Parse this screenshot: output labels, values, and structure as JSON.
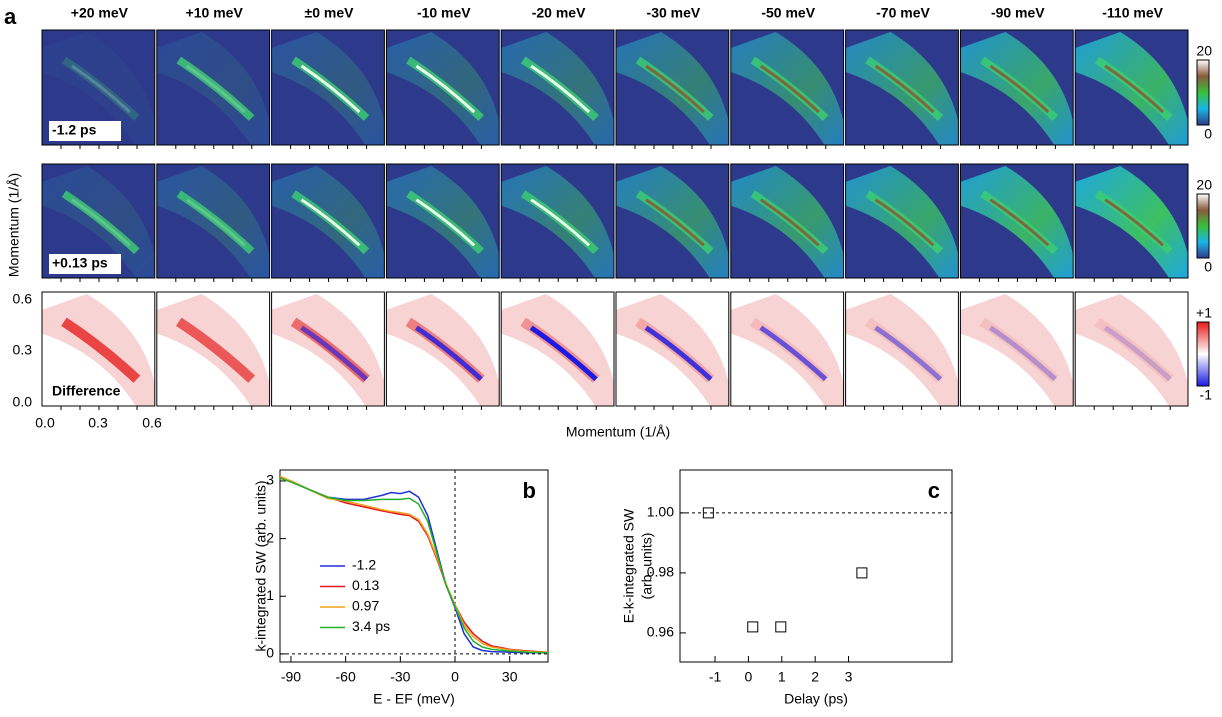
{
  "panel_a": {
    "label": "a",
    "columns": [
      "+20 meV",
      "+10 meV",
      "±0 meV",
      "-10 meV",
      "-20 meV",
      "-30 meV",
      "-50 meV",
      "-70 meV",
      "-90 meV",
      "-110 meV"
    ],
    "rows": [
      {
        "label": "-1.2 ps",
        "colorbar": [
          "20",
          "0"
        ]
      },
      {
        "label": "+0.13 ps",
        "colorbar": [
          "20",
          "0"
        ]
      },
      {
        "label": "Difference",
        "colorbar": [
          "+1",
          "-1"
        ]
      }
    ],
    "ylabel": "Momentum (1/Å)",
    "xlabel": "Momentum (1/Å)",
    "yticks": [
      "0.6",
      "0.3",
      "0.0"
    ],
    "xticks": [
      "0.0",
      "0.3",
      "0.6"
    ]
  },
  "chart_data": [
    {
      "type": "line",
      "label": "b",
      "xlabel": "E - EF (meV)",
      "ylabel": [
        "k-integrated SW (arb. units)"
      ],
      "x": [
        -96,
        -90,
        -80,
        -70,
        -60,
        -50,
        -40,
        -35,
        -30,
        -25,
        -20,
        -15,
        -10,
        -5,
        0,
        5,
        10,
        15,
        20,
        30,
        40,
        51
      ],
      "series": [
        {
          "name": "-1.2",
          "color": "#1f2fd6",
          "values": [
            3.05,
            3.0,
            2.85,
            2.72,
            2.68,
            2.68,
            2.75,
            2.8,
            2.78,
            2.82,
            2.72,
            2.4,
            1.8,
            1.2,
            0.8,
            0.35,
            0.12,
            0.06,
            0.04,
            0.03,
            0.02,
            0.02
          ]
        },
        {
          "name": "0.13",
          "color": "#e8141c",
          "values": [
            3.05,
            3.0,
            2.85,
            2.72,
            2.62,
            2.55,
            2.48,
            2.45,
            2.42,
            2.4,
            2.3,
            2.05,
            1.65,
            1.2,
            0.85,
            0.55,
            0.35,
            0.22,
            0.14,
            0.08,
            0.05,
            0.03
          ]
        },
        {
          "name": "0.97",
          "color": "#f2a01c",
          "values": [
            3.08,
            3.0,
            2.85,
            2.7,
            2.65,
            2.58,
            2.5,
            2.47,
            2.45,
            2.42,
            2.33,
            2.08,
            1.68,
            1.22,
            0.85,
            0.5,
            0.3,
            0.18,
            0.12,
            0.07,
            0.04,
            0.03
          ]
        },
        {
          "name": "3.4 ps",
          "color": "#22b02a",
          "values": [
            3.05,
            2.98,
            2.85,
            2.72,
            2.66,
            2.66,
            2.68,
            2.68,
            2.68,
            2.7,
            2.6,
            2.3,
            1.75,
            1.2,
            0.82,
            0.45,
            0.22,
            0.12,
            0.08,
            0.05,
            0.03,
            0.02
          ]
        }
      ],
      "xlim": [
        -96,
        51
      ],
      "xticks": [
        -90,
        -60,
        -30,
        0,
        30
      ],
      "ylim": [
        -0.14,
        3.19
      ],
      "yticks": [
        0,
        1,
        2,
        3
      ],
      "vlines": [
        0
      ],
      "hlines": [
        0
      ]
    },
    {
      "type": "scatter",
      "label": "c",
      "xlabel": "Delay (ps)",
      "ylabel": [
        "E-k-integrated SW",
        "(arb. units)"
      ],
      "x": [
        -1.2,
        0.13,
        0.97,
        3.4
      ],
      "series": [
        {
          "name": null,
          "color": "#000000",
          "values": [
            1.0,
            0.962,
            0.962,
            0.98
          ]
        }
      ],
      "xlim": [
        -2.05,
        6.1
      ],
      "xticks": [
        -1,
        0,
        1,
        2,
        3
      ],
      "ylim": [
        0.9503,
        1.0143
      ],
      "yticks": [
        0.96,
        0.98,
        {
          "value": 1,
          "label": "1.00"
        }
      ],
      "hlines": [
        1
      ]
    }
  ]
}
